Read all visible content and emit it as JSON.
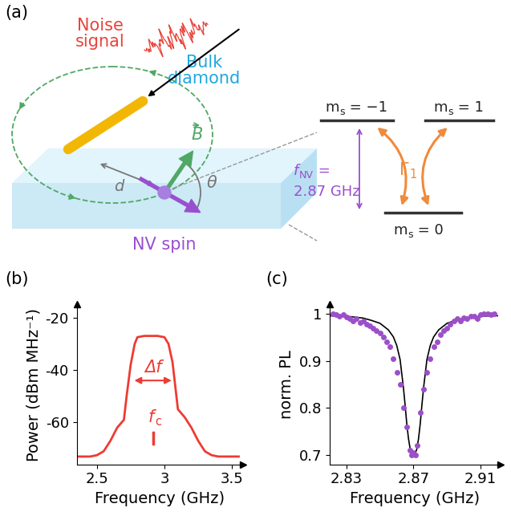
{
  "diagram": {
    "label": "(a)",
    "noise_label": "Noise\nsignal",
    "material_label": "Bulk\ndiamond",
    "spin_label": "NV spin",
    "field_label": "B",
    "distance_label": "d",
    "angle_label": "θ",
    "levels": [
      {
        "base": "m",
        "sub": "s",
        "rest": " = −1"
      },
      {
        "base": "m",
        "sub": "s",
        "rest": " = 1"
      },
      {
        "base": "m",
        "sub": "s",
        "rest": " = 0"
      }
    ],
    "transition": {
      "base": "f",
      "sub": "NV",
      "rest": " =",
      "value": "2.87 GHz"
    },
    "rate": {
      "base": "Γ",
      "sub": "1"
    }
  },
  "chart_data": [
    {
      "type": "line",
      "panel_label": "(b)",
      "xlabel": "Frequency (GHz)",
      "ylabel": "Power (dBm MHz⁻¹)",
      "xlim": [
        2.35,
        3.58
      ],
      "ylim": [
        -76,
        -15
      ],
      "xticks": [
        2.5,
        3,
        3.5
      ],
      "yticks": [
        -60,
        -40,
        -20
      ],
      "grid": false,
      "x": [
        2.35,
        2.45,
        2.5,
        2.55,
        2.6,
        2.65,
        2.7,
        2.72,
        2.75,
        2.78,
        2.8,
        2.85,
        2.9,
        2.95,
        3.0,
        3.03,
        3.06,
        3.08,
        3.1,
        3.15,
        3.2,
        3.25,
        3.3,
        3.35,
        3.4,
        3.45,
        3.5,
        3.55
      ],
      "series": [
        {
          "color": "#ee3b33",
          "values": [
            -73,
            -73,
            -72.5,
            -71,
            -67,
            -62,
            -59,
            -50,
            -38,
            -30,
            -27.5,
            -27,
            -27,
            -27,
            -27.5,
            -30,
            -37,
            -46,
            -55,
            -58,
            -62,
            -67,
            -71,
            -72.5,
            -73,
            -73,
            -73,
            -73
          ]
        }
      ],
      "annotations": [
        {
          "text": "Δf",
          "x_from": 2.76,
          "x_to": 3.07,
          "y": -44
        },
        {
          "base": "f",
          "sub": "c",
          "x": 2.92,
          "y": -61
        }
      ]
    },
    {
      "type": "scatter",
      "panel_label": "(c)",
      "xlabel": "Frequency (GHz)",
      "ylabel": "norm. PL",
      "xlim": [
        2.82,
        2.922
      ],
      "ylim": [
        0.68,
        1.02
      ],
      "xticks": [
        2.83,
        2.87,
        2.91
      ],
      "yticks": [
        0.7,
        0.8,
        0.9,
        1
      ],
      "grid": false,
      "series": [
        {
          "type": "scatter",
          "color": "#9c50c8",
          "x": [
            2.822,
            2.824,
            2.826,
            2.828,
            2.83,
            2.832,
            2.834,
            2.836,
            2.838,
            2.84,
            2.842,
            2.844,
            2.846,
            2.848,
            2.85,
            2.852,
            2.854,
            2.856,
            2.858,
            2.86,
            2.862,
            2.864,
            2.866,
            2.868,
            2.869,
            2.87,
            2.871,
            2.872,
            2.874,
            2.876,
            2.878,
            2.88,
            2.882,
            2.884,
            2.886,
            2.888,
            2.89,
            2.892,
            2.894,
            2.896,
            2.898,
            2.9,
            2.902,
            2.904,
            2.906,
            2.908,
            2.91,
            2.912,
            2.914,
            2.916,
            2.918
          ],
          "values": [
            1.0,
            0.998,
            0.995,
            0.998,
            0.993,
            0.99,
            0.985,
            0.99,
            0.982,
            0.985,
            0.978,
            0.975,
            0.97,
            0.965,
            0.96,
            0.95,
            0.94,
            0.93,
            0.905,
            0.875,
            0.85,
            0.8,
            0.76,
            0.71,
            0.7,
            0.705,
            0.7,
            0.72,
            0.79,
            0.84,
            0.875,
            0.905,
            0.93,
            0.94,
            0.955,
            0.965,
            0.97,
            0.978,
            0.985,
            0.99,
            0.985,
            0.992,
            0.99,
            0.995,
            0.995,
            0.99,
            0.998,
            1.0,
            1.0,
            0.998,
            1.0
          ]
        },
        {
          "type": "line",
          "color": "#000000",
          "x": [
            2.82,
            2.83,
            2.84,
            2.845,
            2.85,
            2.855,
            2.858,
            2.86,
            2.862,
            2.864,
            2.865,
            2.866,
            2.867,
            2.868,
            2.869,
            2.87,
            2.871,
            2.872,
            2.873,
            2.874,
            2.875,
            2.876,
            2.878,
            2.88,
            2.882,
            2.885,
            2.89,
            2.895,
            2.9,
            2.91,
            2.92
          ],
          "values": [
            0.996,
            0.995,
            0.991,
            0.986,
            0.98,
            0.966,
            0.951,
            0.933,
            0.903,
            0.843,
            0.806,
            0.766,
            0.735,
            0.713,
            0.703,
            0.7,
            0.703,
            0.713,
            0.735,
            0.766,
            0.806,
            0.843,
            0.903,
            0.933,
            0.951,
            0.966,
            0.98,
            0.986,
            0.991,
            0.995,
            0.996
          ]
        }
      ]
    }
  ]
}
